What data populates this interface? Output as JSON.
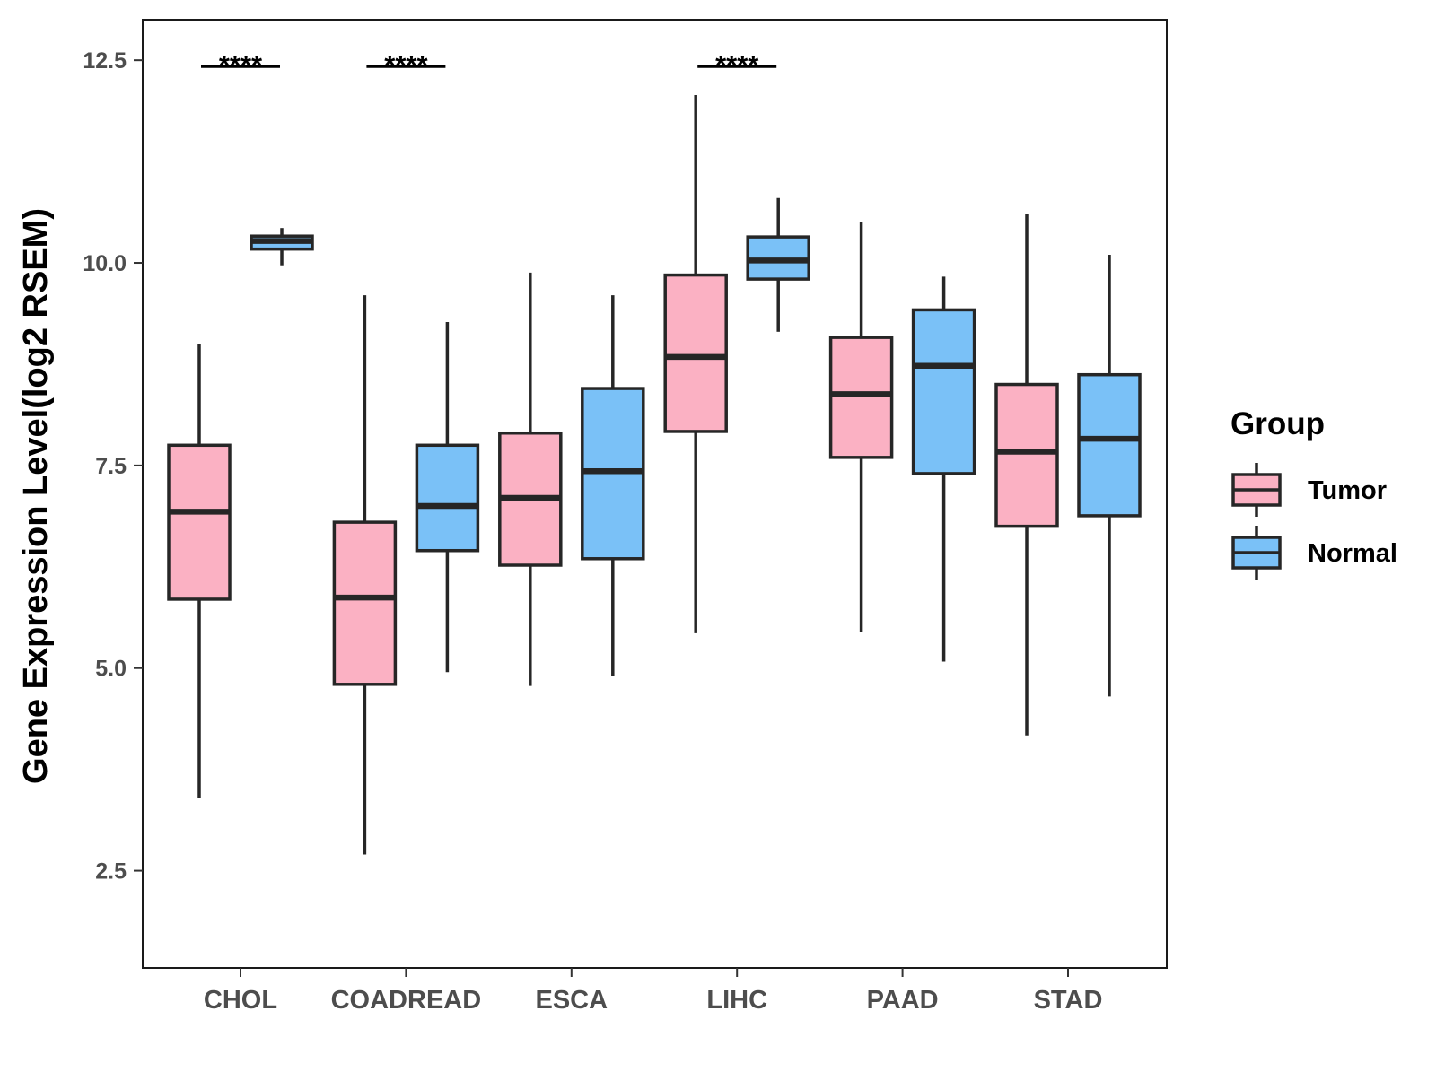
{
  "chart_data": {
    "type": "boxplot",
    "ylabel": "Gene Expression Level(log2 RSEM)",
    "xlabel": "",
    "ylim": [
      1.3,
      13.0
    ],
    "yticks": [
      2.5,
      5.0,
      7.5,
      10.0,
      12.5
    ],
    "ytick_labels": [
      "2.5",
      "5.0",
      "7.5",
      "10.0",
      "12.5"
    ],
    "grid": false,
    "categories": [
      "CHOL",
      "COADREAD",
      "ESCA",
      "LIHC",
      "PAAD",
      "STAD"
    ],
    "legend": {
      "title": "Group",
      "position": "right",
      "entries": [
        "Tumor",
        "Normal"
      ]
    },
    "colors": {
      "Tumor": "#fbb1c3",
      "Normal": "#7ac1f7",
      "stroke": "#262626"
    },
    "series": [
      {
        "name": "Tumor",
        "boxes": [
          {
            "category": "CHOL",
            "min": 3.4,
            "q1": 5.85,
            "median": 6.93,
            "q3": 7.75,
            "max": 9.0
          },
          {
            "category": "COADREAD",
            "min": 2.7,
            "q1": 4.8,
            "median": 5.87,
            "q3": 6.8,
            "max": 9.6
          },
          {
            "category": "ESCA",
            "min": 4.78,
            "q1": 6.27,
            "median": 7.1,
            "q3": 7.9,
            "max": 9.88
          },
          {
            "category": "LIHC",
            "min": 5.43,
            "q1": 7.92,
            "median": 8.84,
            "q3": 9.85,
            "max": 12.07
          },
          {
            "category": "PAAD",
            "min": 5.44,
            "q1": 7.6,
            "median": 8.38,
            "q3": 9.08,
            "max": 10.5
          },
          {
            "category": "STAD",
            "min": 4.17,
            "q1": 6.75,
            "median": 7.67,
            "q3": 8.5,
            "max": 10.6
          }
        ]
      },
      {
        "name": "Normal",
        "boxes": [
          {
            "category": "CHOL",
            "min": 9.97,
            "q1": 10.17,
            "median": 10.27,
            "q3": 10.33,
            "max": 10.43
          },
          {
            "category": "COADREAD",
            "min": 4.95,
            "q1": 6.45,
            "median": 7.0,
            "q3": 7.75,
            "max": 9.27
          },
          {
            "category": "ESCA",
            "min": 4.9,
            "q1": 6.35,
            "median": 7.43,
            "q3": 8.45,
            "max": 9.6
          },
          {
            "category": "LIHC",
            "min": 9.15,
            "q1": 9.8,
            "median": 10.03,
            "q3": 10.32,
            "max": 10.8
          },
          {
            "category": "PAAD",
            "min": 5.08,
            "q1": 7.4,
            "median": 8.73,
            "q3": 9.42,
            "max": 9.83
          },
          {
            "category": "STAD",
            "min": 4.65,
            "q1": 6.88,
            "median": 7.83,
            "q3": 8.62,
            "max": 10.1
          }
        ]
      }
    ],
    "significance": [
      {
        "category": "CHOL",
        "label": "****"
      },
      {
        "category": "COADREAD",
        "label": "****"
      },
      {
        "category": "LIHC",
        "label": "****"
      }
    ]
  }
}
